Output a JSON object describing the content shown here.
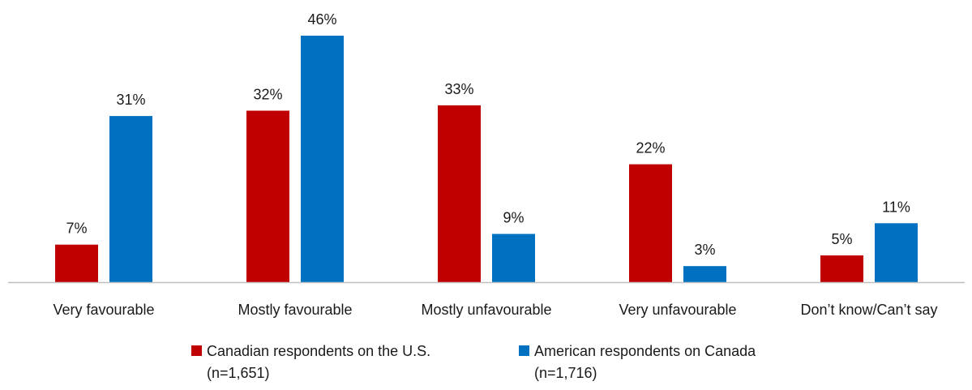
{
  "chart_data": {
    "type": "bar",
    "categories": [
      "Very favourable",
      "Mostly favourable",
      "Mostly unfavourable",
      "Very unfavourable",
      "Don’t know/Can’t say"
    ],
    "series": [
      {
        "name": "Canadian respondents on the U.S.",
        "name_line2": "(n=1,651)",
        "color": "#C00000",
        "values": [
          7,
          32,
          33,
          22,
          5
        ],
        "labels": [
          "7%",
          "32%",
          "33%",
          "22%",
          "5%"
        ]
      },
      {
        "name": "American respondents on Canada",
        "name_line2": "(n=1,716)",
        "color": "#0070C0",
        "values": [
          31,
          46,
          9,
          3,
          11
        ],
        "labels": [
          "31%",
          "46%",
          "9%",
          "3%",
          "11%"
        ]
      }
    ],
    "value_unit": "%",
    "ylim": [
      0,
      46
    ],
    "grid": false,
    "legend_position": "bottom-center"
  }
}
